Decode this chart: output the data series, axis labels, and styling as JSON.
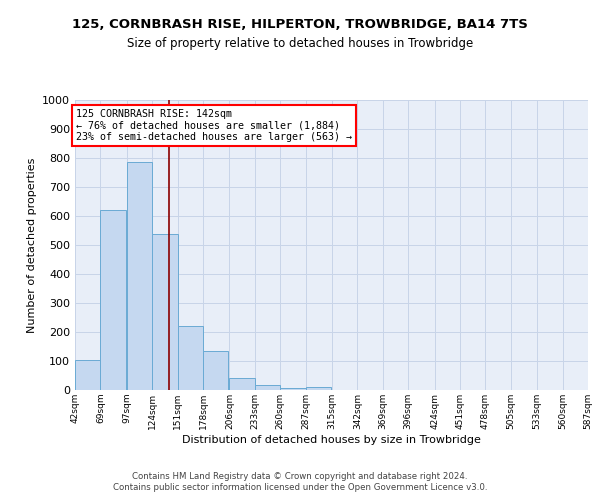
{
  "title": "125, CORNBRASH RISE, HILPERTON, TROWBRIDGE, BA14 7TS",
  "subtitle": "Size of property relative to detached houses in Trowbridge",
  "xlabel": "Distribution of detached houses by size in Trowbridge",
  "ylabel": "Number of detached properties",
  "bar_color": "#c5d8f0",
  "bar_edge_color": "#6aaad4",
  "grid_color": "#c8d4e8",
  "background_color": "#e8eef8",
  "red_line_x": 142,
  "annotation_text": "125 CORNBRASH RISE: 142sqm\n← 76% of detached houses are smaller (1,884)\n23% of semi-detached houses are larger (563) →",
  "footer": "Contains HM Land Registry data © Crown copyright and database right 2024.\nContains public sector information licensed under the Open Government Licence v3.0.",
  "bins": [
    42,
    69,
    97,
    124,
    151,
    178,
    206,
    233,
    260,
    287,
    315,
    342,
    369,
    396,
    424,
    451,
    478,
    505,
    533,
    560,
    587
  ],
  "counts": [
    103,
    622,
    786,
    538,
    221,
    133,
    42,
    16,
    8,
    11,
    0,
    0,
    0,
    0,
    0,
    0,
    0,
    0,
    0,
    0
  ],
  "ylim": [
    0,
    1000
  ],
  "yticks": [
    0,
    100,
    200,
    300,
    400,
    500,
    600,
    700,
    800,
    900,
    1000
  ],
  "figsize": [
    6.0,
    5.0
  ],
  "dpi": 100
}
